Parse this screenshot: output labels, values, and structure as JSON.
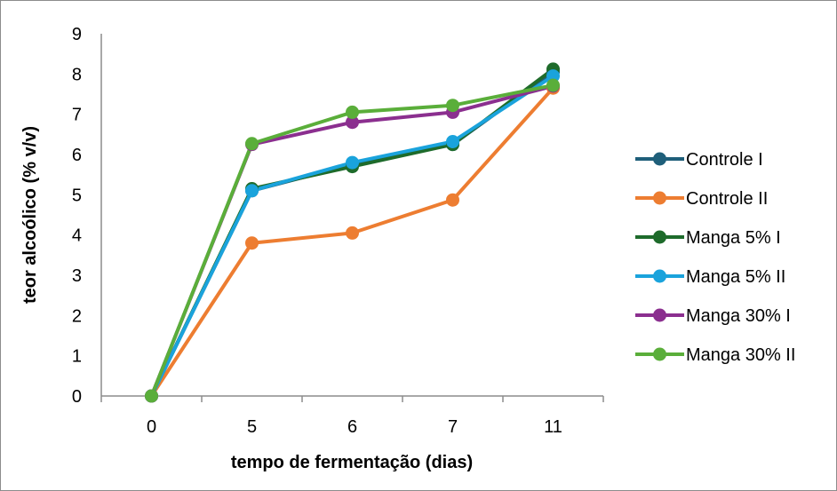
{
  "chart_data": {
    "type": "line",
    "title": "",
    "xlabel": "tempo de fermentação (dias)",
    "ylabel": "teor alcoólico (% v/v)",
    "categories": [
      "0",
      "5",
      "6",
      "7",
      "11"
    ],
    "ylim": [
      0,
      9
    ],
    "yticks": [
      "0",
      "1",
      "2",
      "3",
      "4",
      "5",
      "6",
      "7",
      "8",
      "9"
    ],
    "grid": false,
    "legend_position": "right",
    "series": [
      {
        "name": "Controle I",
        "color": "#1f5f7a",
        "values": [
          0,
          5.1,
          5.75,
          6.25,
          8.05
        ]
      },
      {
        "name": "Controle II",
        "color": "#ed7d31",
        "values": [
          0,
          3.8,
          4.05,
          4.87,
          7.65
        ]
      },
      {
        "name": "Manga 5% I",
        "color": "#1e6b2b",
        "values": [
          0,
          5.15,
          5.7,
          6.25,
          8.12
        ]
      },
      {
        "name": "Manga 5% II",
        "color": "#1aa3dc",
        "values": [
          0,
          5.1,
          5.8,
          6.32,
          7.95
        ]
      },
      {
        "name": "Manga 30% I",
        "color": "#8b2f8f",
        "values": [
          0,
          6.25,
          6.8,
          7.05,
          7.7
        ]
      },
      {
        "name": "Manga 30% II",
        "color": "#5aae3a",
        "values": [
          0,
          6.27,
          7.05,
          7.22,
          7.72
        ]
      }
    ]
  }
}
